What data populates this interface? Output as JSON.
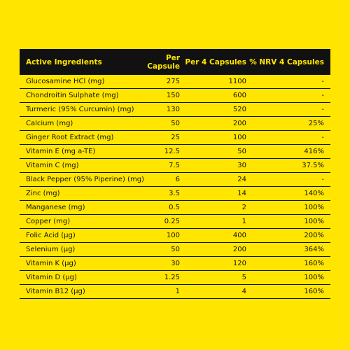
{
  "table": {
    "header": [
      "Active Ingredients",
      "Per Capsule",
      "Per 4 Capsules",
      "% NRV 4 Capsules"
    ],
    "rows": [
      [
        "Glucosamine HCl (mg)",
        "275",
        "1100",
        "-"
      ],
      [
        "Chondroitin Sulphate (mg)",
        "150",
        "600",
        "-"
      ],
      [
        "Turmeric (95% Curcumin) (mg)",
        "130",
        "520",
        "-"
      ],
      [
        "Calcium (mg)",
        "50",
        "200",
        "25%"
      ],
      [
        "Ginger Root Extract (mg)",
        "25",
        "100",
        "-"
      ],
      [
        "Vitamin E (mg a-TE)",
        "12.5",
        "50",
        "416%"
      ],
      [
        "Vitamin C (mg)",
        "7.5",
        "30",
        "37.5%"
      ],
      [
        "Black Pepper (95% Piperine) (mg)",
        "6",
        "24",
        "-"
      ],
      [
        "Zinc (mg)",
        "3.5",
        "14",
        "140%"
      ],
      [
        "Manganese (mg)",
        "0.5",
        "2",
        "100%"
      ],
      [
        "Copper (mg)",
        "0.25",
        "1",
        "100%"
      ],
      [
        "Folic Acid (µg)",
        "100",
        "400",
        "200%"
      ],
      [
        "Selenium (µg)",
        "50",
        "200",
        "364%"
      ],
      [
        "Vitamin K (µg)",
        "30",
        "120",
        "160%"
      ],
      [
        "Vitamin D (µg)",
        "1.25",
        "5",
        "100%"
      ],
      [
        "Vitamin B12 (µg)",
        "1",
        "4",
        "160%"
      ]
    ]
  }
}
